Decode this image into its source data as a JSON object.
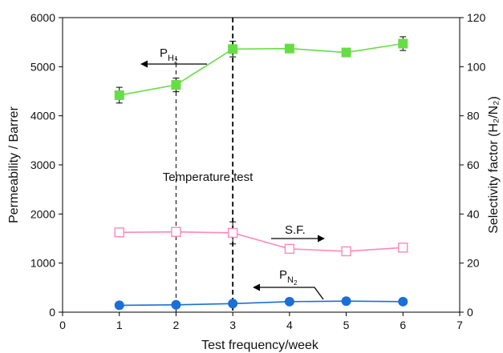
{
  "chart_data": {
    "type": "line",
    "title": "",
    "xlabel": "Test frequency/week",
    "ylabel_left": "Permeability / Barrer",
    "ylabel_right": "Selectivity factor (H₂/N₂)",
    "xlim": [
      0,
      7
    ],
    "ylim_left": [
      0,
      6000
    ],
    "ylim_right": [
      0,
      120
    ],
    "x_ticks": [
      "0",
      "1",
      "2",
      "3",
      "4",
      "5",
      "6",
      "7"
    ],
    "y_ticks_left": [
      "0",
      "1000",
      "2000",
      "3000",
      "4000",
      "5000",
      "6000"
    ],
    "y_ticks_right": [
      "0",
      "20",
      "40",
      "60",
      "80",
      "100",
      "120"
    ],
    "grid": false,
    "series": [
      {
        "name": "PH2",
        "axis": "left",
        "marker": "filled-square",
        "color": "#66dd44",
        "x": [
          1,
          2,
          3,
          4,
          5,
          6
        ],
        "y": [
          4420,
          4630,
          5360,
          5370,
          5290,
          5470
        ],
        "err": [
          160,
          140,
          160,
          80,
          80,
          140
        ]
      },
      {
        "name": "S.F.",
        "axis": "right",
        "marker": "open-square",
        "color": "#ff88bb",
        "x": [
          1,
          2,
          3,
          4,
          5,
          6
        ],
        "y": [
          32.5,
          32.7,
          32.3,
          25.8,
          24.8,
          26.3
        ],
        "err": [
          1.2,
          1.2,
          4.5,
          1.2,
          1.0,
          1.2
        ]
      },
      {
        "name": "PN2",
        "axis": "left",
        "marker": "filled-circle",
        "color": "#1a6fd8",
        "x": [
          1,
          2,
          3,
          4,
          5,
          6
        ],
        "y": [
          140,
          150,
          175,
          215,
          225,
          215
        ],
        "err": [
          20,
          20,
          30,
          25,
          25,
          20
        ]
      }
    ],
    "vlines": [
      {
        "x": 2,
        "style": "dashed",
        "weight": "thin"
      },
      {
        "x": 3,
        "style": "dashed",
        "weight": "bold"
      }
    ],
    "annotations": {
      "temperature": "Temperature test",
      "ph2_base": "P",
      "ph2_sub": "H",
      "ph2_subsub": "2",
      "sf": "S.F.",
      "pn2_base": "P",
      "pn2_sub": "N",
      "pn2_subsub": "2"
    }
  }
}
